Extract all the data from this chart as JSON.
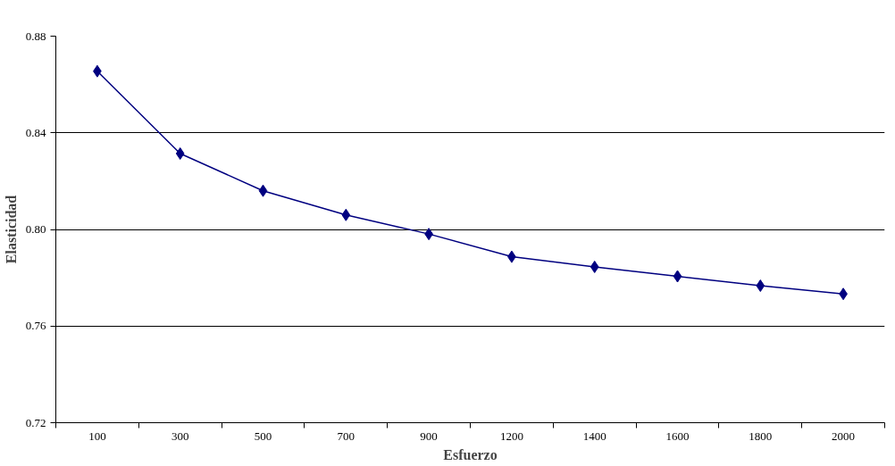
{
  "chart_data": {
    "type": "line",
    "xlabel": "Esfuerzo",
    "ylabel": "Elasticidad",
    "categories": [
      "100",
      "300",
      "500",
      "700",
      "900",
      "1200",
      "1400",
      "1600",
      "1800",
      "2000"
    ],
    "series": [
      {
        "color": "#000080",
        "values": [
          0.8655,
          0.8314,
          0.816,
          0.806,
          0.7981,
          0.7887,
          0.7845,
          0.7806,
          0.7767,
          0.7733
        ]
      }
    ],
    "ylim": [
      0.72,
      0.88
    ],
    "yticks": [
      {
        "value": 0.72,
        "label": "0.72"
      },
      {
        "value": 0.76,
        "label": "0.76"
      },
      {
        "value": 0.8,
        "label": "0.80"
      },
      {
        "value": 0.84,
        "label": "0.84"
      },
      {
        "value": 0.88,
        "label": "0.88"
      }
    ],
    "grid": "y",
    "marker": "diamond",
    "line_style": "solid"
  }
}
